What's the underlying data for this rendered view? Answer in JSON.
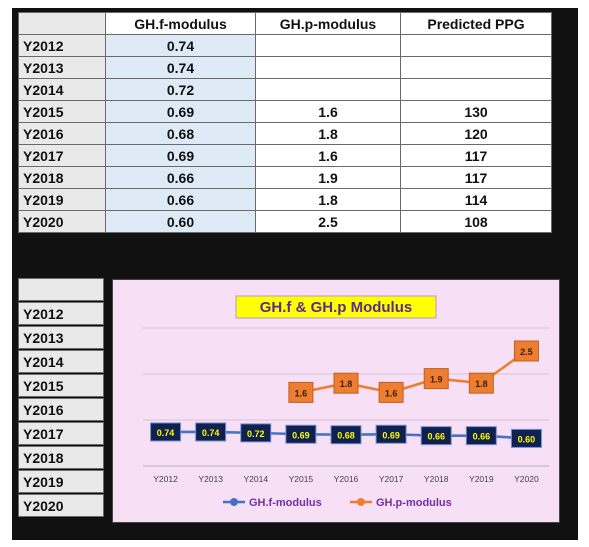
{
  "table": {
    "headers": [
      "",
      "GH.f-modulus",
      "GH.p-modulus",
      "Predicted PPG"
    ],
    "rows": [
      {
        "year": "Y2012",
        "gf": "0.74",
        "gp": "",
        "ppg": ""
      },
      {
        "year": "Y2013",
        "gf": "0.74",
        "gp": "",
        "ppg": ""
      },
      {
        "year": "Y2014",
        "gf": "0.72",
        "gp": "",
        "ppg": ""
      },
      {
        "year": "Y2015",
        "gf": "0.69",
        "gp": "1.6",
        "ppg": "130"
      },
      {
        "year": "Y2016",
        "gf": "0.68",
        "gp": "1.8",
        "ppg": "120"
      },
      {
        "year": "Y2017",
        "gf": "0.69",
        "gp": "1.6",
        "ppg": "117"
      },
      {
        "year": "Y2018",
        "gf": "0.66",
        "gp": "1.9",
        "ppg": "117"
      },
      {
        "year": "Y2019",
        "gf": "0.66",
        "gp": "1.8",
        "ppg": "114"
      },
      {
        "year": "Y2020",
        "gf": "0.60",
        "gp": "2.5",
        "ppg": "108"
      }
    ]
  },
  "lower_years": [
    "Y2012",
    "Y2013",
    "Y2014",
    "Y2015",
    "Y2016",
    "Y2017",
    "Y2018",
    "Y2019",
    "Y2020"
  ],
  "chart_data": {
    "type": "line",
    "title": "GH.f & GH.p Modulus",
    "categories": [
      "Y2012",
      "Y2013",
      "Y2014",
      "Y2015",
      "Y2016",
      "Y2017",
      "Y2018",
      "Y2019",
      "Y2020"
    ],
    "series": [
      {
        "name": "GH.f-modulus",
        "color": "#4472c4",
        "values": [
          0.74,
          0.74,
          0.72,
          0.69,
          0.68,
          0.69,
          0.66,
          0.66,
          0.6
        ],
        "labels": [
          "0.74",
          "0.74",
          "0.72",
          "0.69",
          "0.68",
          "0.69",
          "0.66",
          "0.66",
          "0.60"
        ]
      },
      {
        "name": "GH.p-modulus",
        "color": "#ed7d31",
        "values": [
          null,
          null,
          null,
          1.6,
          1.8,
          1.6,
          1.9,
          1.8,
          2.5
        ],
        "labels": [
          "",
          "",
          "",
          "1.6",
          "1.8",
          "1.6",
          "1.9",
          "1.8",
          "2.5"
        ]
      }
    ],
    "ylim": [
      0,
      3
    ],
    "grid": true,
    "legend": "bottom",
    "title_bg": "#ffff00",
    "title_color": "#5b2c8f",
    "legend_color": "#7030a0",
    "gf_label_bg": "#10204f",
    "gf_label_color": "#ffff00",
    "gp_label_color": "#3a1e00"
  }
}
